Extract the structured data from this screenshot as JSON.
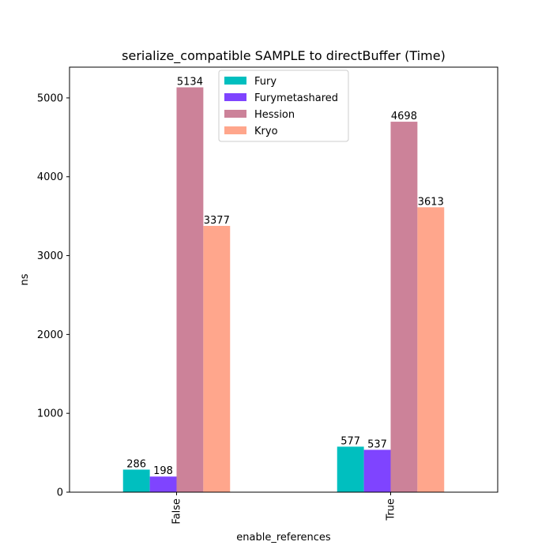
{
  "chart_data": {
    "type": "bar",
    "title": "serialize_compatible SAMPLE to directBuffer (Time)",
    "xlabel": "enable_references",
    "ylabel": "ns",
    "categories": [
      "False",
      "True"
    ],
    "ylim": [
      0,
      5390
    ],
    "yticks": [
      0,
      1000,
      2000,
      3000,
      4000,
      5000
    ],
    "grid": false,
    "legend_position": "top-center",
    "series": [
      {
        "name": "Fury",
        "color": "#00bfbf",
        "values": [
          286,
          577
        ]
      },
      {
        "name": "Furymetashared",
        "color": "#7f44ff",
        "values": [
          198,
          537
        ]
      },
      {
        "name": "Hession",
        "color": "#cc8299",
        "values": [
          5134,
          4698
        ]
      },
      {
        "name": "Kryo",
        "color": "#ffa68c",
        "values": [
          3377,
          3613
        ]
      }
    ]
  }
}
